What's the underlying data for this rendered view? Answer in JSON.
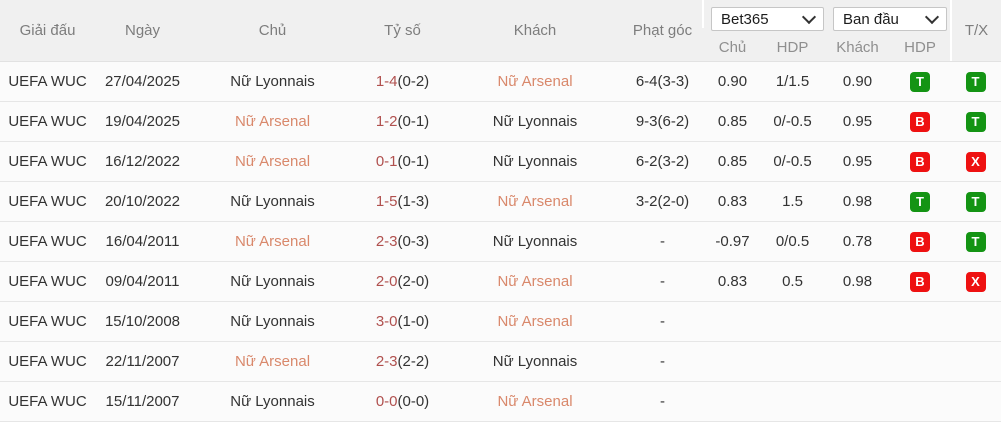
{
  "header": {
    "columns": {
      "league": "Giải đấu",
      "date": "Ngày",
      "home": "Chủ",
      "score": "Tỷ số",
      "away": "Khách",
      "corners": "Phạt góc",
      "result": "T/X"
    },
    "dropdowns": [
      {
        "label": "Bet365"
      },
      {
        "label": "Ban đầu"
      }
    ],
    "sub_columns": {
      "home_odds": "Chủ",
      "hdp1": "HDP",
      "away_odds": "Khách",
      "hdp2": "HDP"
    }
  },
  "colors": {
    "team_highlight": "#d9886b",
    "score_accent": "#b0504e",
    "badge_green": "#149414",
    "badge_red": "#ee1111",
    "header_bg": "#f0f0f0",
    "row_bg": "#fbfbfb"
  },
  "rows": [
    {
      "league": "UEFA WUC",
      "date": "27/04/2025",
      "home": "Nữ Lyonnais",
      "home_highlight": false,
      "score": "1-4",
      "score_half": "(0-2)",
      "away": "Nữ Arsenal",
      "away_highlight": true,
      "corners": "6-4(3-3)",
      "odds_home": "0.90",
      "hdp": "1/1.5",
      "odds_away": "0.90",
      "hdp_result": {
        "letter": "T",
        "color": "green"
      },
      "ou_result": {
        "letter": "T",
        "color": "green"
      }
    },
    {
      "league": "UEFA WUC",
      "date": "19/04/2025",
      "home": "Nữ Arsenal",
      "home_highlight": true,
      "score": "1-2",
      "score_half": "(0-1)",
      "away": "Nữ Lyonnais",
      "away_highlight": false,
      "corners": "9-3(6-2)",
      "odds_home": "0.85",
      "hdp": "0/-0.5",
      "odds_away": "0.95",
      "hdp_result": {
        "letter": "B",
        "color": "red"
      },
      "ou_result": {
        "letter": "T",
        "color": "green"
      }
    },
    {
      "league": "UEFA WUC",
      "date": "16/12/2022",
      "home": "Nữ Arsenal",
      "home_highlight": true,
      "score": "0-1",
      "score_half": "(0-1)",
      "away": "Nữ Lyonnais",
      "away_highlight": false,
      "corners": "6-2(3-2)",
      "odds_home": "0.85",
      "hdp": "0/-0.5",
      "odds_away": "0.95",
      "hdp_result": {
        "letter": "B",
        "color": "red"
      },
      "ou_result": {
        "letter": "X",
        "color": "red"
      }
    },
    {
      "league": "UEFA WUC",
      "date": "20/10/2022",
      "home": "Nữ Lyonnais",
      "home_highlight": false,
      "score": "1-5",
      "score_half": "(1-3)",
      "away": "Nữ Arsenal",
      "away_highlight": true,
      "corners": "3-2(2-0)",
      "odds_home": "0.83",
      "hdp": "1.5",
      "odds_away": "0.98",
      "hdp_result": {
        "letter": "T",
        "color": "green"
      },
      "ou_result": {
        "letter": "T",
        "color": "green"
      }
    },
    {
      "league": "UEFA WUC",
      "date": "16/04/2011",
      "home": "Nữ Arsenal",
      "home_highlight": true,
      "score": "2-3",
      "score_half": "(0-3)",
      "away": "Nữ Lyonnais",
      "away_highlight": false,
      "corners": "-",
      "odds_home": "-0.97",
      "hdp": "0/0.5",
      "odds_away": "0.78",
      "hdp_result": {
        "letter": "B",
        "color": "red"
      },
      "ou_result": {
        "letter": "T",
        "color": "green"
      }
    },
    {
      "league": "UEFA WUC",
      "date": "09/04/2011",
      "home": "Nữ Lyonnais",
      "home_highlight": false,
      "score": "2-0",
      "score_half": "(2-0)",
      "away": "Nữ Arsenal",
      "away_highlight": true,
      "corners": "-",
      "odds_home": "0.83",
      "hdp": "0.5",
      "odds_away": "0.98",
      "hdp_result": {
        "letter": "B",
        "color": "red"
      },
      "ou_result": {
        "letter": "X",
        "color": "red"
      }
    },
    {
      "league": "UEFA WUC",
      "date": "15/10/2008",
      "home": "Nữ Lyonnais",
      "home_highlight": false,
      "score": "3-0",
      "score_half": "(1-0)",
      "away": "Nữ Arsenal",
      "away_highlight": true,
      "corners": "-",
      "odds_home": "",
      "hdp": "",
      "odds_away": "",
      "hdp_result": null,
      "ou_result": null
    },
    {
      "league": "UEFA WUC",
      "date": "22/11/2007",
      "home": "Nữ Arsenal",
      "home_highlight": true,
      "score": "2-3",
      "score_half": "(2-2)",
      "away": "Nữ Lyonnais",
      "away_highlight": false,
      "corners": "-",
      "odds_home": "",
      "hdp": "",
      "odds_away": "",
      "hdp_result": null,
      "ou_result": null
    },
    {
      "league": "UEFA WUC",
      "date": "15/11/2007",
      "home": "Nữ Lyonnais",
      "home_highlight": false,
      "score": "0-0",
      "score_half": "(0-0)",
      "away": "Nữ Arsenal",
      "away_highlight": true,
      "corners": "-",
      "odds_home": "",
      "hdp": "",
      "odds_away": "",
      "hdp_result": null,
      "ou_result": null
    }
  ]
}
